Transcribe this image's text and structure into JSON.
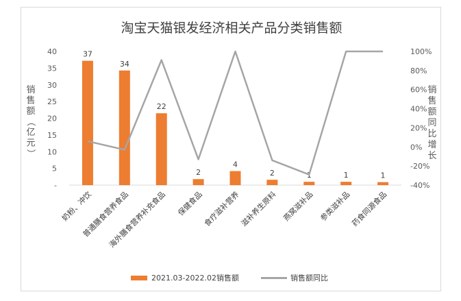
{
  "chart_data": {
    "type": "bar",
    "title": "淘宝天猫银发经济相关产品分类销售额",
    "ylabel": "销售额（亿元）",
    "y2label": "销售额同比增长",
    "ylim": [
      0,
      40
    ],
    "yticks": [
      "-",
      "5",
      "10",
      "15",
      "20",
      "25",
      "30",
      "35",
      "40"
    ],
    "y2lim": [
      -0.4,
      1.0
    ],
    "y2ticks": [
      "-40%",
      "-20%",
      "0%",
      "20%",
      "40%",
      "60%",
      "80%",
      "100%"
    ],
    "categories": [
      "奶粉、冲饮",
      "普通膳食营养食品",
      "海外膳食营养补充食品",
      "保健食品",
      "食疗滋补营养",
      "滋补养生原料",
      "燕窝滋补品",
      "参类滋补品",
      "药食同源食品"
    ],
    "series": [
      {
        "name": "2021.03-2022.02销售额",
        "kind": "bar",
        "color": "#ED7D31",
        "values": [
          37.2,
          34.3,
          21.5,
          1.8,
          4.2,
          1.6,
          1.0,
          1.0,
          0.9
        ],
        "labels": [
          "37",
          "34",
          "22",
          "2",
          "4",
          "2",
          "1",
          "1",
          "1"
        ]
      },
      {
        "name": "销售额同比",
        "kind": "line",
        "color": "#A5A5A5",
        "axis": "right",
        "values": [
          0.06,
          -0.03,
          0.91,
          -0.13,
          1.0,
          -0.14,
          -0.29,
          1.0,
          1.0
        ]
      }
    ],
    "grid": false,
    "legend": "bottom"
  }
}
